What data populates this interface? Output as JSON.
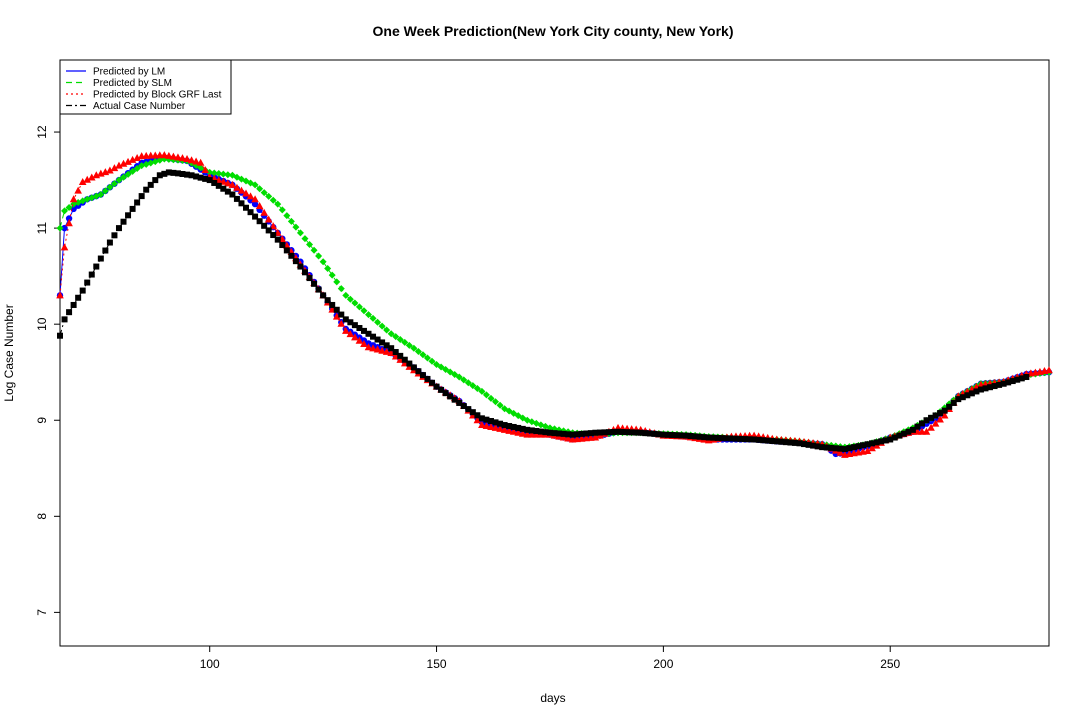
{
  "chart_data": {
    "type": "scatter",
    "title": "One Week Prediction(New York City county, New York)",
    "xlabel": "days",
    "ylabel": "Log Case Number",
    "xlim": [
      67,
      285
    ],
    "ylim": [
      6.65,
      12.75
    ],
    "x_ticks": [
      100,
      150,
      200,
      250
    ],
    "y_ticks": [
      7,
      8,
      9,
      10,
      11,
      12
    ],
    "grid": false,
    "legend_position": "top-left",
    "legend": [
      {
        "label": "Predicted by LM",
        "color": "#0000ff",
        "line_style": "solid"
      },
      {
        "label": "Predicted by SLM",
        "color": "#00dd00",
        "line_style": "dashed"
      },
      {
        "label": "Predicted by Block GRF Last",
        "color": "#ff0000",
        "line_style": "dotted"
      },
      {
        "label": "Actual Case Number",
        "color": "#000000",
        "line_style": "dashdot"
      }
    ],
    "series": [
      {
        "name": "Predicted by LM",
        "color": "#0000ff",
        "marker": "circle",
        "points": [
          [
            67,
            10.3
          ],
          [
            68,
            11.0
          ],
          [
            70,
            11.2
          ],
          [
            73,
            11.3
          ],
          [
            76,
            11.35
          ],
          [
            80,
            11.5
          ],
          [
            85,
            11.68
          ],
          [
            90,
            11.73
          ],
          [
            95,
            11.7
          ],
          [
            100,
            11.55
          ],
          [
            105,
            11.45
          ],
          [
            110,
            11.25
          ],
          [
            115,
            10.95
          ],
          [
            120,
            10.65
          ],
          [
            125,
            10.3
          ],
          [
            130,
            9.95
          ],
          [
            135,
            9.8
          ],
          [
            140,
            9.7
          ],
          [
            145,
            9.55
          ],
          [
            150,
            9.35
          ],
          [
            155,
            9.2
          ],
          [
            160,
            8.98
          ],
          [
            165,
            8.92
          ],
          [
            170,
            8.88
          ],
          [
            175,
            8.85
          ],
          [
            180,
            8.8
          ],
          [
            185,
            8.83
          ],
          [
            190,
            8.88
          ],
          [
            195,
            8.88
          ],
          [
            200,
            8.85
          ],
          [
            205,
            8.83
          ],
          [
            210,
            8.8
          ],
          [
            215,
            8.8
          ],
          [
            220,
            8.8
          ],
          [
            225,
            8.78
          ],
          [
            230,
            8.77
          ],
          [
            235,
            8.75
          ],
          [
            238,
            8.65
          ],
          [
            240,
            8.66
          ],
          [
            245,
            8.73
          ],
          [
            250,
            8.82
          ],
          [
            255,
            8.88
          ],
          [
            260,
            9.02
          ],
          [
            265,
            9.25
          ],
          [
            270,
            9.38
          ],
          [
            275,
            9.4
          ],
          [
            280,
            9.48
          ],
          [
            285,
            9.5
          ]
        ]
      },
      {
        "name": "Predicted by SLM",
        "color": "#00dd00",
        "marker": "diamond",
        "points": [
          [
            67,
            11.0
          ],
          [
            68,
            11.18
          ],
          [
            70,
            11.25
          ],
          [
            73,
            11.3
          ],
          [
            76,
            11.35
          ],
          [
            80,
            11.5
          ],
          [
            85,
            11.65
          ],
          [
            90,
            11.72
          ],
          [
            95,
            11.7
          ],
          [
            100,
            11.58
          ],
          [
            105,
            11.55
          ],
          [
            110,
            11.45
          ],
          [
            115,
            11.25
          ],
          [
            120,
            10.95
          ],
          [
            125,
            10.65
          ],
          [
            130,
            10.3
          ],
          [
            135,
            10.1
          ],
          [
            140,
            9.9
          ],
          [
            145,
            9.75
          ],
          [
            150,
            9.58
          ],
          [
            155,
            9.45
          ],
          [
            160,
            9.3
          ],
          [
            165,
            9.12
          ],
          [
            170,
            9.0
          ],
          [
            175,
            8.92
          ],
          [
            180,
            8.87
          ],
          [
            185,
            8.85
          ],
          [
            190,
            8.87
          ],
          [
            195,
            8.87
          ],
          [
            200,
            8.86
          ],
          [
            205,
            8.85
          ],
          [
            210,
            8.83
          ],
          [
            215,
            8.82
          ],
          [
            220,
            8.81
          ],
          [
            225,
            8.8
          ],
          [
            230,
            8.78
          ],
          [
            235,
            8.75
          ],
          [
            240,
            8.72
          ],
          [
            245,
            8.75
          ],
          [
            250,
            8.82
          ],
          [
            255,
            8.92
          ],
          [
            260,
            9.05
          ],
          [
            265,
            9.25
          ],
          [
            270,
            9.38
          ],
          [
            275,
            9.4
          ],
          [
            280,
            9.47
          ],
          [
            285,
            9.5
          ]
        ]
      },
      {
        "name": "Predicted by Block GRF Last",
        "color": "#ff0000",
        "marker": "triangle",
        "points": [
          [
            67,
            10.3
          ],
          [
            68,
            10.8
          ],
          [
            70,
            11.3
          ],
          [
            72,
            11.48
          ],
          [
            75,
            11.55
          ],
          [
            78,
            11.6
          ],
          [
            80,
            11.65
          ],
          [
            85,
            11.75
          ],
          [
            90,
            11.76
          ],
          [
            95,
            11.72
          ],
          [
            98,
            11.68
          ],
          [
            100,
            11.53
          ],
          [
            105,
            11.45
          ],
          [
            110,
            11.3
          ],
          [
            115,
            10.95
          ],
          [
            120,
            10.62
          ],
          [
            125,
            10.3
          ],
          [
            130,
            9.93
          ],
          [
            135,
            9.76
          ],
          [
            140,
            9.7
          ],
          [
            145,
            9.52
          ],
          [
            150,
            9.35
          ],
          [
            155,
            9.2
          ],
          [
            160,
            8.95
          ],
          [
            165,
            8.9
          ],
          [
            170,
            8.85
          ],
          [
            175,
            8.85
          ],
          [
            180,
            8.8
          ],
          [
            185,
            8.82
          ],
          [
            190,
            8.92
          ],
          [
            195,
            8.9
          ],
          [
            200,
            8.84
          ],
          [
            205,
            8.83
          ],
          [
            210,
            8.79
          ],
          [
            215,
            8.83
          ],
          [
            220,
            8.84
          ],
          [
            225,
            8.8
          ],
          [
            230,
            8.78
          ],
          [
            235,
            8.75
          ],
          [
            240,
            8.64
          ],
          [
            245,
            8.68
          ],
          [
            250,
            8.82
          ],
          [
            255,
            8.88
          ],
          [
            258,
            8.88
          ],
          [
            262,
            9.05
          ],
          [
            265,
            9.25
          ],
          [
            270,
            9.37
          ],
          [
            275,
            9.4
          ],
          [
            280,
            9.48
          ],
          [
            285,
            9.52
          ]
        ]
      },
      {
        "name": "Actual Case Number",
        "color": "#000000",
        "marker": "square",
        "points": [
          [
            67,
            9.88
          ],
          [
            68,
            10.05
          ],
          [
            70,
            10.2
          ],
          [
            72,
            10.35
          ],
          [
            75,
            10.6
          ],
          [
            78,
            10.85
          ],
          [
            80,
            11.0
          ],
          [
            83,
            11.2
          ],
          [
            86,
            11.4
          ],
          [
            89,
            11.55
          ],
          [
            91,
            11.58
          ],
          [
            93,
            11.57
          ],
          [
            96,
            11.55
          ],
          [
            100,
            11.5
          ],
          [
            105,
            11.35
          ],
          [
            110,
            11.12
          ],
          [
            115,
            10.88
          ],
          [
            120,
            10.6
          ],
          [
            125,
            10.3
          ],
          [
            130,
            10.05
          ],
          [
            135,
            9.9
          ],
          [
            140,
            9.75
          ],
          [
            145,
            9.55
          ],
          [
            150,
            9.35
          ],
          [
            155,
            9.18
          ],
          [
            160,
            9.02
          ],
          [
            165,
            8.95
          ],
          [
            170,
            8.9
          ],
          [
            175,
            8.87
          ],
          [
            180,
            8.85
          ],
          [
            185,
            8.87
          ],
          [
            190,
            8.88
          ],
          [
            195,
            8.87
          ],
          [
            200,
            8.85
          ],
          [
            205,
            8.84
          ],
          [
            210,
            8.82
          ],
          [
            215,
            8.81
          ],
          [
            220,
            8.8
          ],
          [
            225,
            8.78
          ],
          [
            230,
            8.76
          ],
          [
            235,
            8.72
          ],
          [
            240,
            8.7
          ],
          [
            245,
            8.75
          ],
          [
            250,
            8.8
          ],
          [
            255,
            8.9
          ],
          [
            258,
            9.0
          ],
          [
            262,
            9.1
          ],
          [
            265,
            9.22
          ],
          [
            270,
            9.32
          ],
          [
            275,
            9.38
          ],
          [
            280,
            9.45
          ]
        ]
      }
    ]
  }
}
